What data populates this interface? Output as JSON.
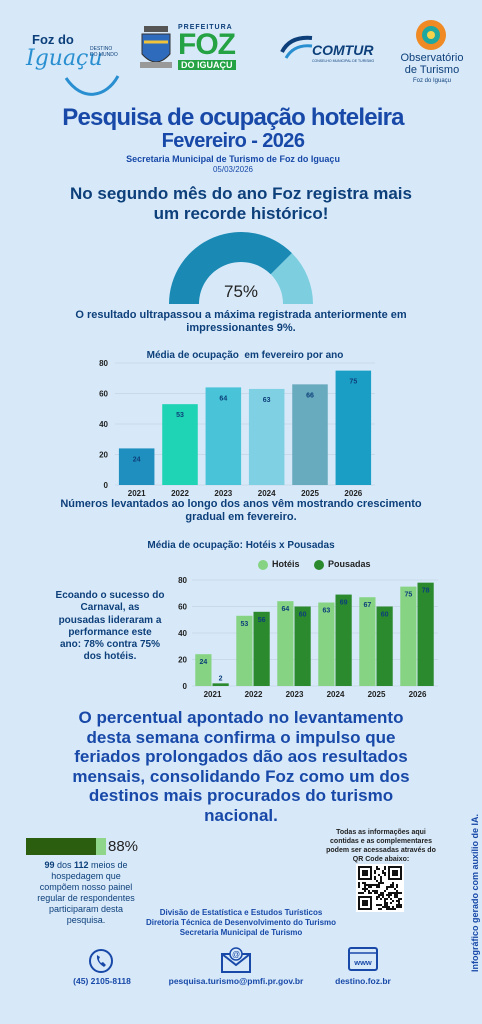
{
  "logos": {
    "fozdoiguacu": {
      "line1": "Foz do",
      "line2": "Iguaçu",
      "tag1": "DESTINO",
      "tag2": "DO MUNDO"
    },
    "prefeitura": {
      "top": "PREFEITURA",
      "big": "FOZ",
      "sub": "DO IGUAÇU"
    },
    "comtur": {
      "name": "COMTUR",
      "sub": "CONSELHO MUNICIPAL DE TURISMO"
    },
    "observatorio": {
      "line1": "Observatório",
      "line2": "de Turismo",
      "line3": "Foz do Iguaçu"
    }
  },
  "header": {
    "title": "Pesquisa de ocupação hoteleira",
    "subtitle": "Fevereiro - 2026",
    "secretaria": "Secretaria Municipal de Turismo de Foz do Iguaçu",
    "date": "05/03/2026"
  },
  "headline": {
    "line1": "No segundo mês do ano Foz registra mais",
    "line2": "um recorde histórico!"
  },
  "gauge": {
    "value_label": "75%",
    "value": 75,
    "colors": {
      "filled": "#1a8ab5",
      "rest": "#7dcfe0"
    }
  },
  "gauge_note": {
    "line1": "O resultado ultrapassou a máxima registrada anteriormente em",
    "line2": "impressionantes 9%."
  },
  "chart_data": [
    {
      "type": "bar",
      "title": "Média de ocupação  em fevereiro por ano",
      "categories": [
        "2021",
        "2022",
        "2023",
        "2024",
        "2025",
        "2026"
      ],
      "values": [
        24,
        53,
        64,
        63,
        66,
        75
      ],
      "data_labels": [
        "24",
        "53",
        "64",
        "63",
        "66",
        "75"
      ],
      "yticks": [
        "0",
        "20",
        "40",
        "60",
        "80"
      ],
      "ylim": [
        0,
        80
      ],
      "colors": [
        "#1f8fbf",
        "#1fd3b5",
        "#48c3d8",
        "#7fd0e2",
        "#68abbe",
        "#1a9ec6"
      ],
      "grid": true
    },
    {
      "type": "bar",
      "title": "Média de ocupação: Hotéis x Pousadas",
      "categories": [
        "2021",
        "2022",
        "2023",
        "2024",
        "2025",
        "2026"
      ],
      "series": [
        {
          "name": "Hotéis",
          "values": [
            24,
            53,
            64,
            63,
            67,
            75
          ],
          "labels": [
            "24",
            "53",
            "64",
            "63",
            "67",
            "75"
          ],
          "color": "#86d383"
        },
        {
          "name": "Pousadas",
          "values": [
            2,
            56,
            60,
            69,
            60,
            78
          ],
          "labels": [
            "2",
            "56",
            "60",
            "69",
            "60",
            "78"
          ],
          "color": "#2a8a2d"
        }
      ],
      "yticks": [
        "0",
        "20",
        "40",
        "60",
        "80"
      ],
      "ylim": [
        0,
        80
      ],
      "legend": "top",
      "grid": true
    }
  ],
  "chart1_caption": {
    "line1": "Números levantados ao longo dos anos vêm mostrando crescimento",
    "line2": "gradual em fevereiro."
  },
  "chart2_side": {
    "lines": [
      "Ecoando o sucesso do",
      "Carnaval, as",
      "pousadas lideraram a",
      "performance este",
      "ano: 78% contra 75%",
      "dos hotéis."
    ]
  },
  "conclusion": {
    "lines": [
      "O percentual apontado no levantamento",
      "desta semana confirma o impulso que",
      "feriados prolongados dão aos resultados",
      "mensais, consolidando Foz como um dos",
      "destinos mais procurados do turismo",
      "nacional."
    ]
  },
  "participation": {
    "label": "88%",
    "value": 88,
    "color_fill": "#2b5e0f",
    "color_rest": "#8fd58a",
    "lines": [
      "99 dos 112 meios de",
      "hospedagem que",
      "compõem nosso painel",
      "regular de respondentes",
      "participaram desta",
      "pesquisa."
    ],
    "bold_a": "99",
    "bold_b": "112"
  },
  "qr_note": {
    "lines": [
      "Todas as informações aqui",
      "contidas e as complementares",
      "podem ser acessadas através do",
      "QR Code abaixo:"
    ]
  },
  "credits": {
    "lines": [
      "Divisão de Estatística e Estudos Turísticos",
      "Diretoria Técnica de Desenvolvimento do Turismo",
      "Secretaria Municipal de Turismo"
    ]
  },
  "contacts": {
    "phone": "(45) 2105-8118",
    "email": "pesquisa.turismo@pmfi.pr.gov.br",
    "site": "destino.foz.br",
    "www": "www"
  },
  "side_note": "Infográfico gerado com auxílio de IA."
}
